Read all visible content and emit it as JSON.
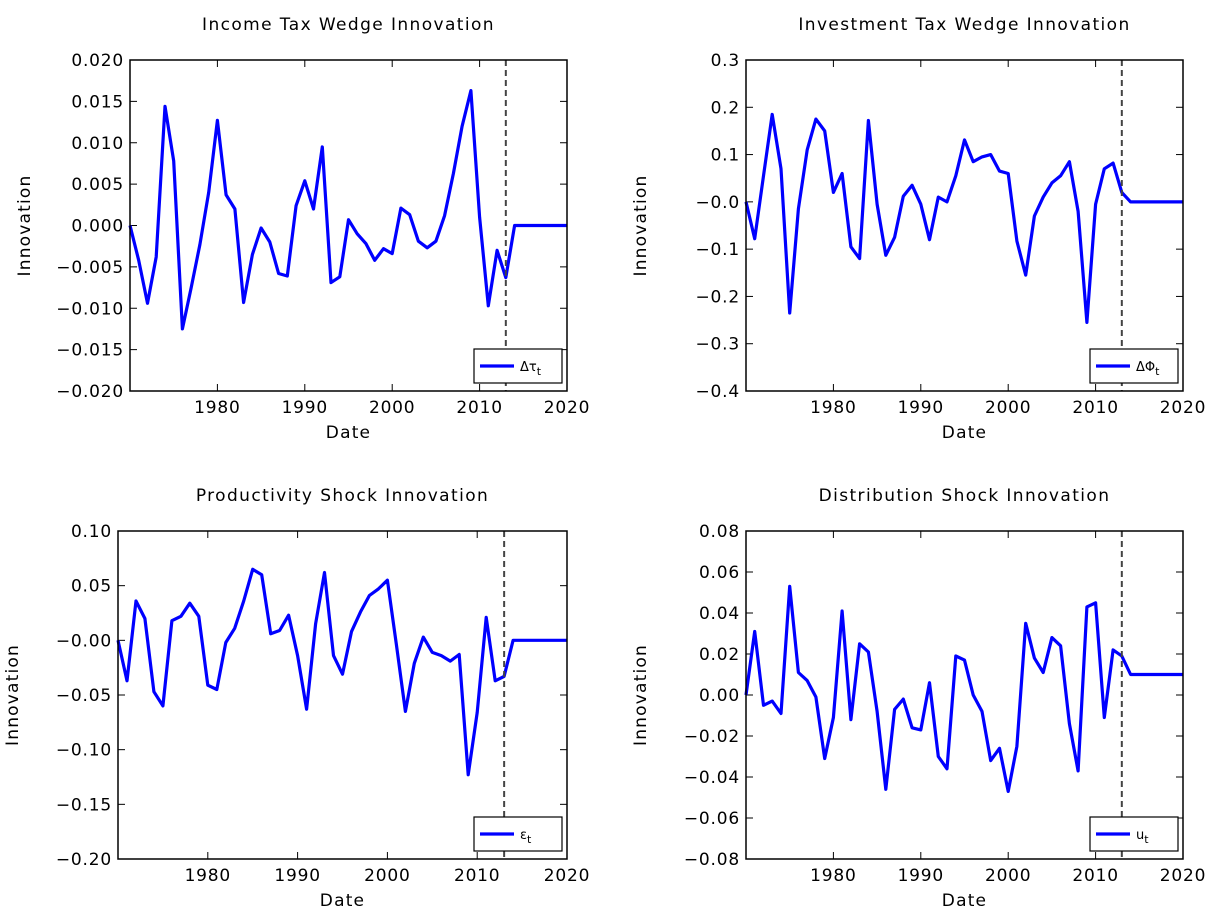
{
  "chart_data": [
    {
      "type": "line",
      "title": "Income Tax Wedge Innovation",
      "xlabel": "Date",
      "ylabel": "Innovation",
      "xlim": [
        1970,
        2020
      ],
      "ylim": [
        -0.02,
        0.02
      ],
      "xticks": [
        1980,
        1990,
        2000,
        2010,
        2020
      ],
      "yticks": [
        -0.02,
        -0.015,
        -0.01,
        -0.005,
        0.0,
        0.005,
        0.01,
        0.015,
        0.02
      ],
      "ytick_labels": [
        "−0.020",
        "−0.015",
        "−0.010",
        "−0.005",
        "0.000",
        "0.005",
        "0.010",
        "0.015",
        "0.020"
      ],
      "vline": 2013,
      "legend": {
        "position": "bottom-right",
        "label": "Δτ",
        "subscript": "t"
      },
      "series_color": "#0000ff",
      "x": [
        1970,
        1971,
        1972,
        1973,
        1974,
        1975,
        1976,
        1977,
        1978,
        1979,
        1980,
        1981,
        1982,
        1983,
        1984,
        1985,
        1986,
        1987,
        1988,
        1989,
        1990,
        1991,
        1992,
        1993,
        1994,
        1995,
        1996,
        1997,
        1998,
        1999,
        2000,
        2001,
        2002,
        2003,
        2004,
        2005,
        2006,
        2007,
        2008,
        2009,
        2010,
        2011,
        2012,
        2013,
        2014,
        2015,
        2016,
        2017,
        2018,
        2019,
        2020
      ],
      "y": [
        0.0,
        -0.0042,
        -0.0094,
        -0.0038,
        0.0144,
        0.0078,
        -0.0125,
        -0.0075,
        -0.0023,
        0.004,
        0.0127,
        0.0037,
        0.002,
        -0.0093,
        -0.0035,
        -0.0003,
        -0.002,
        -0.0058,
        -0.0061,
        0.0024,
        0.0054,
        0.002,
        0.0095,
        -0.0069,
        -0.0062,
        0.0007,
        -0.001,
        -0.0022,
        -0.0042,
        -0.0028,
        -0.0034,
        0.0021,
        0.0013,
        -0.0019,
        -0.0027,
        -0.0019,
        0.0012,
        0.0063,
        0.012,
        0.0163,
        0.001,
        -0.0097,
        -0.003,
        -0.0063,
        0.0,
        0.0,
        0.0,
        0.0,
        0.0,
        0.0,
        0.0
      ]
    },
    {
      "type": "line",
      "title": "Investment Tax Wedge Innovation",
      "xlabel": "Date",
      "ylabel": "Innovation",
      "xlim": [
        1970,
        2020
      ],
      "ylim": [
        -0.4,
        0.3
      ],
      "xticks": [
        1980,
        1990,
        2000,
        2010,
        2020
      ],
      "yticks": [
        -0.4,
        -0.3,
        -0.2,
        -0.1,
        0.0,
        0.1,
        0.2,
        0.3
      ],
      "ytick_labels": [
        "−0.4",
        "−0.3",
        "−0.2",
        "−0.1",
        "−0.0",
        "0.1",
        "0.2",
        "0.3"
      ],
      "vline": 2013,
      "legend": {
        "position": "bottom-right",
        "label": "ΔΦ",
        "subscript": "t"
      },
      "series_color": "#0000ff",
      "x": [
        1970,
        1971,
        1972,
        1973,
        1974,
        1975,
        1976,
        1977,
        1978,
        1979,
        1980,
        1981,
        1982,
        1983,
        1984,
        1985,
        1986,
        1987,
        1988,
        1989,
        1990,
        1991,
        1992,
        1993,
        1994,
        1995,
        1996,
        1997,
        1998,
        1999,
        2000,
        2001,
        2002,
        2003,
        2004,
        2005,
        2006,
        2007,
        2008,
        2009,
        2010,
        2011,
        2012,
        2013,
        2014,
        2015,
        2016,
        2017,
        2018,
        2019,
        2020
      ],
      "y": [
        0.0,
        -0.078,
        0.055,
        0.185,
        0.07,
        -0.235,
        -0.015,
        0.11,
        0.175,
        0.15,
        0.02,
        0.06,
        -0.095,
        -0.12,
        0.172,
        -0.005,
        -0.113,
        -0.075,
        0.012,
        0.035,
        -0.005,
        -0.08,
        0.01,
        0.0,
        0.055,
        0.131,
        0.085,
        0.095,
        0.1,
        0.065,
        0.06,
        -0.083,
        -0.155,
        -0.03,
        0.01,
        0.04,
        0.055,
        0.085,
        -0.02,
        -0.255,
        -0.005,
        0.07,
        0.082,
        0.02,
        0.0,
        0.0,
        0.0,
        0.0,
        0.0,
        0.0,
        0.0
      ]
    },
    {
      "type": "line",
      "title": "Productivity Shock Innovation",
      "xlabel": "Date",
      "ylabel": "Innovation",
      "xlim": [
        1970,
        2020
      ],
      "ylim": [
        -0.2,
        0.1
      ],
      "xticks": [
        1980,
        1990,
        2000,
        2010,
        2020
      ],
      "yticks": [
        -0.2,
        -0.15,
        -0.1,
        -0.05,
        0.0,
        0.05,
        0.1
      ],
      "ytick_labels": [
        "−0.20",
        "−0.15",
        "−0.10",
        "−0.05",
        "−0.00",
        "0.05",
        "0.10"
      ],
      "vline": 2013,
      "legend": {
        "position": "bottom-right",
        "label": "ε",
        "subscript": "t"
      },
      "series_color": "#0000ff",
      "x": [
        1970,
        1971,
        1972,
        1973,
        1974,
        1975,
        1976,
        1977,
        1978,
        1979,
        1980,
        1981,
        1982,
        1983,
        1984,
        1985,
        1986,
        1987,
        1988,
        1989,
        1990,
        1991,
        1992,
        1993,
        1994,
        1995,
        1996,
        1997,
        1998,
        1999,
        2000,
        2001,
        2002,
        2003,
        2004,
        2005,
        2006,
        2007,
        2008,
        2009,
        2010,
        2011,
        2012,
        2013,
        2014,
        2015,
        2016,
        2017,
        2018,
        2019,
        2020
      ],
      "y": [
        0.0,
        -0.037,
        0.036,
        0.02,
        -0.047,
        -0.06,
        0.018,
        0.022,
        0.034,
        0.022,
        -0.041,
        -0.045,
        -0.002,
        0.011,
        0.036,
        0.065,
        0.06,
        0.006,
        0.009,
        0.023,
        -0.014,
        -0.063,
        0.015,
        0.062,
        -0.014,
        -0.031,
        0.008,
        0.026,
        0.041,
        0.047,
        0.055,
        -0.004,
        -0.065,
        -0.021,
        0.003,
        -0.011,
        -0.014,
        -0.019,
        -0.013,
        -0.123,
        -0.066,
        0.021,
        -0.037,
        -0.033,
        0.0,
        0.0,
        0.0,
        0.0,
        0.0,
        0.0,
        0.0
      ]
    },
    {
      "type": "line",
      "title": "Distribution Shock Innovation",
      "xlabel": "Date",
      "ylabel": "Innovation",
      "xlim": [
        1970,
        2020
      ],
      "ylim": [
        -0.08,
        0.08
      ],
      "xticks": [
        1980,
        1990,
        2000,
        2010,
        2020
      ],
      "yticks": [
        -0.08,
        -0.06,
        -0.04,
        -0.02,
        0.0,
        0.02,
        0.04,
        0.06,
        0.08
      ],
      "ytick_labels": [
        "−0.08",
        "−0.06",
        "−0.04",
        "−0.02",
        "0.00",
        "0.02",
        "0.04",
        "0.06",
        "0.08"
      ],
      "vline": 2013,
      "legend": {
        "position": "bottom-right",
        "label": "u",
        "subscript": "t"
      },
      "series_color": "#0000ff",
      "x": [
        1970,
        1971,
        1972,
        1973,
        1974,
        1975,
        1976,
        1977,
        1978,
        1979,
        1980,
        1981,
        1982,
        1983,
        1984,
        1985,
        1986,
        1987,
        1988,
        1989,
        1990,
        1991,
        1992,
        1993,
        1994,
        1995,
        1996,
        1997,
        1998,
        1999,
        2000,
        2001,
        2002,
        2003,
        2004,
        2005,
        2006,
        2007,
        2008,
        2009,
        2010,
        2011,
        2012,
        2013,
        2014,
        2015,
        2016,
        2017,
        2018,
        2019,
        2020
      ],
      "y": [
        0.0,
        0.031,
        -0.005,
        -0.003,
        -0.009,
        0.053,
        0.011,
        0.007,
        -0.001,
        -0.031,
        -0.011,
        0.041,
        -0.012,
        0.025,
        0.021,
        -0.008,
        -0.046,
        -0.007,
        -0.002,
        -0.016,
        -0.017,
        0.006,
        -0.03,
        -0.036,
        0.019,
        0.017,
        0.0,
        -0.008,
        -0.032,
        -0.026,
        -0.047,
        -0.025,
        0.035,
        0.018,
        0.011,
        0.028,
        0.024,
        -0.014,
        -0.037,
        0.043,
        0.045,
        -0.011,
        0.022,
        0.019,
        0.01,
        0.01,
        0.01,
        0.01,
        0.01,
        0.01,
        0.01
      ]
    }
  ]
}
